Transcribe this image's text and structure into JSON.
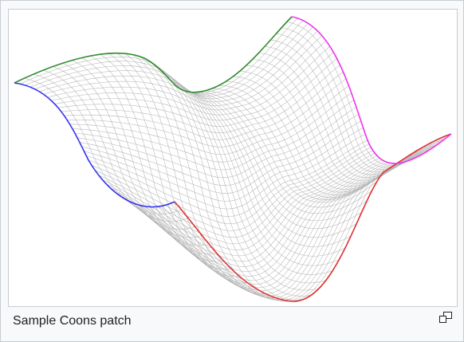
{
  "figure": {
    "caption": "Sample Coons patch",
    "magnify_icon": "enlarge-icon",
    "grid_line_color": "#b4b4b4",
    "boundary_colors": {
      "top": "#2e8b2e",
      "left": "#3333ee",
      "bottom": "#e03030",
      "right": "#ee33ee"
    }
  }
}
